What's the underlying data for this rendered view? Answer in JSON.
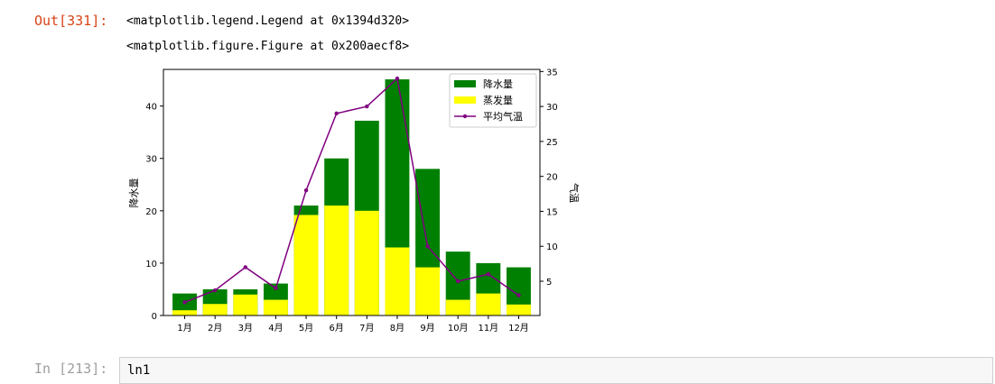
{
  "notebook": {
    "out_prompt": "Out[331]:",
    "out_lines": [
      "<matplotlib.legend.Legend at 0x1394d320>",
      "<matplotlib.figure.Figure at 0x200aecf8>"
    ],
    "in_prompt": "In [213]:",
    "in_code": "ln1"
  },
  "colors": {
    "precip": "#008000",
    "evap": "#ffff00",
    "temp": "#800080"
  },
  "chart_data": {
    "type": "bar",
    "categories": [
      "1月",
      "2月",
      "3月",
      "4月",
      "5月",
      "6月",
      "7月",
      "8月",
      "9月",
      "10月",
      "11月",
      "12月"
    ],
    "series": [
      {
        "name": "降水量",
        "type": "bar",
        "axis": "left",
        "values": [
          4.2,
          5.0,
          5.0,
          6.1,
          21.0,
          30.0,
          37.2,
          45.1,
          28.0,
          12.2,
          10.0,
          9.2
        ]
      },
      {
        "name": "蒸发量",
        "type": "bar",
        "axis": "left",
        "values": [
          1.0,
          2.2,
          4.0,
          3.0,
          19.2,
          21.0,
          20.0,
          13.0,
          9.2,
          3.0,
          4.2,
          2.1
        ]
      },
      {
        "name": "平均气温",
        "type": "line",
        "axis": "right",
        "values": [
          2.0,
          3.7,
          7.0,
          4.0,
          18.0,
          29.0,
          30.0,
          34.0,
          10.0,
          5.0,
          6.0,
          3.0
        ]
      }
    ],
    "ylabel": "降水量",
    "ylabel_right": "气温",
    "ylim": [
      0,
      47
    ],
    "yticks": [
      0,
      10,
      20,
      30,
      40
    ],
    "ylim_right": [
      0.1,
      35.3
    ],
    "yticks_right": [
      5,
      10,
      15,
      20,
      25,
      30,
      35
    ],
    "legend_position": "top-right",
    "grid": false
  }
}
